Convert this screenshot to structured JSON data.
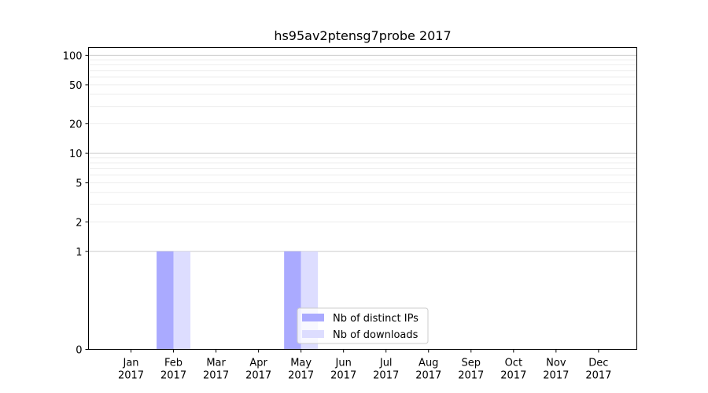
{
  "chart_data": {
    "type": "bar",
    "title": "hs95av2ptensg7probe 2017",
    "xlabel": "",
    "ylabel": "",
    "y_scale": "symlog",
    "ylim": [
      0,
      120
    ],
    "y_ticks": [
      0,
      1,
      2,
      5,
      10,
      20,
      50,
      100
    ],
    "y_tick_labels": [
      "0",
      "1",
      "2",
      "5",
      "10",
      "20",
      "50",
      "100"
    ],
    "categories": [
      "Jan\n2017",
      "Feb\n2017",
      "Mar\n2017",
      "Apr\n2017",
      "May\n2017",
      "Jun\n2017",
      "Jul\n2017",
      "Aug\n2017",
      "Sep\n2017",
      "Oct\n2017",
      "Nov\n2017",
      "Dec\n2017"
    ],
    "series": [
      {
        "name": "Nb of distinct IPs",
        "color": "#aaaaff",
        "values": [
          0,
          1,
          0,
          0,
          1,
          0,
          0,
          0,
          0,
          0,
          0,
          0
        ]
      },
      {
        "name": "Nb of downloads",
        "color": "#ddddff",
        "values": [
          0,
          1,
          0,
          0,
          1,
          0,
          0,
          0,
          0,
          0,
          0,
          0
        ]
      }
    ],
    "grid": true,
    "legend_position": "lower-center"
  }
}
